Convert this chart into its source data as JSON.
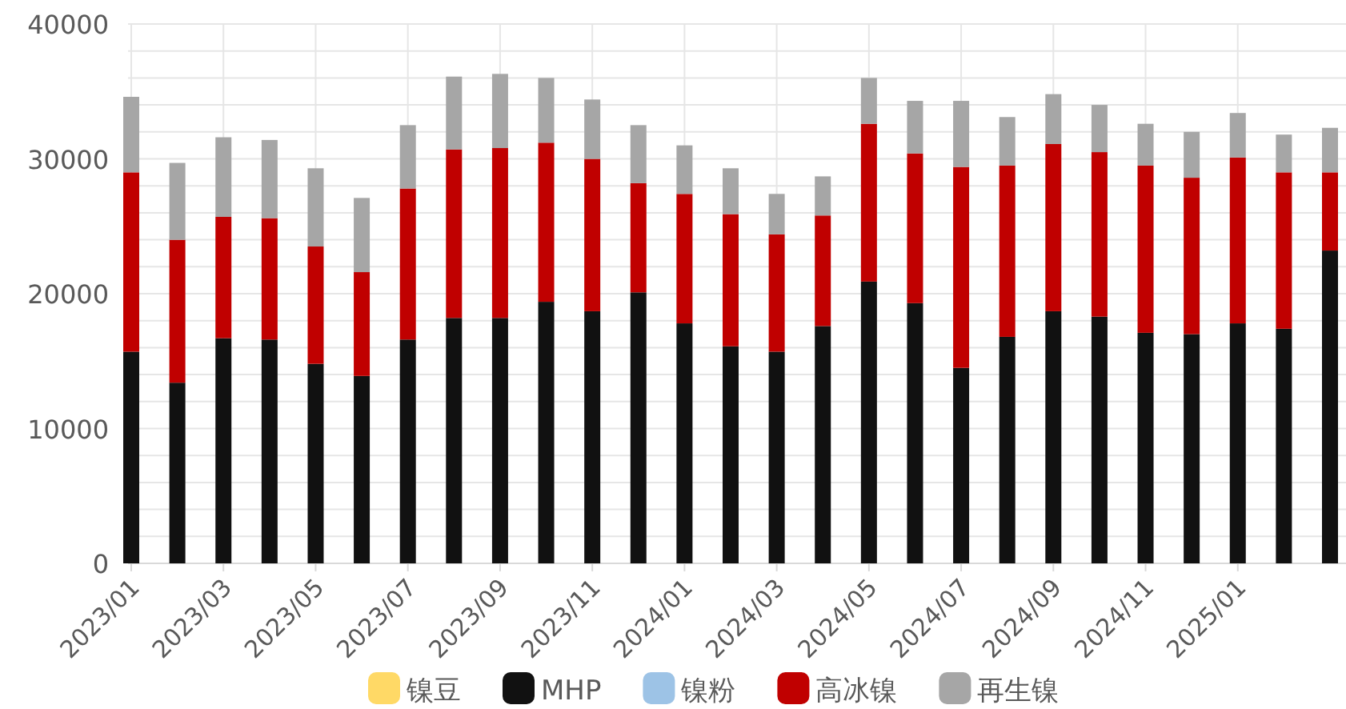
{
  "chart_data": {
    "type": "bar",
    "stacked": true,
    "grid": true,
    "legend": "bottom",
    "categories": [
      "2023/01",
      null,
      "2023/03",
      null,
      "2023/05",
      null,
      "2023/07",
      null,
      "2023/09",
      null,
      "2023/11",
      null,
      "2024/01",
      null,
      "2024/03",
      null,
      "2024/05",
      null,
      "2024/07",
      null,
      "2024/09",
      null,
      "2024/11",
      null,
      "2025/01",
      null,
      null
    ],
    "ylim": [
      0,
      40000
    ],
    "yticks": [
      0,
      {
        "value": 2000,
        "label": null
      },
      {
        "value": 4000,
        "label": null
      },
      {
        "value": 6000,
        "label": null
      },
      {
        "value": 8000,
        "label": null
      },
      10000,
      {
        "value": 12000,
        "label": null
      },
      {
        "value": 14000,
        "label": null
      },
      {
        "value": 16000,
        "label": null
      },
      {
        "value": 18000,
        "label": null
      },
      20000,
      {
        "value": 22000,
        "label": null
      },
      {
        "value": 24000,
        "label": null
      },
      {
        "value": 26000,
        "label": null
      },
      {
        "value": 28000,
        "label": null
      },
      30000,
      {
        "value": 32000,
        "label": null
      },
      {
        "value": 34000,
        "label": null
      },
      {
        "value": 36000,
        "label": null
      },
      {
        "value": 38000,
        "label": null
      },
      40000
    ],
    "series": [
      {
        "name": "镍豆",
        "color": "#ffd966",
        "values": [
          0,
          0,
          0,
          0,
          0,
          0,
          0,
          0,
          0,
          0,
          0,
          0,
          0,
          0,
          0,
          0,
          0,
          0,
          0,
          0,
          0,
          0,
          0,
          0,
          0,
          0,
          0
        ]
      },
      {
        "name": "MHP",
        "color": "#111111",
        "values": [
          15700,
          13400,
          16700,
          16600,
          14800,
          13900,
          16600,
          18200,
          18200,
          19400,
          18700,
          20100,
          17800,
          16100,
          15700,
          17600,
          20900,
          19300,
          14500,
          16800,
          18700,
          18300,
          17100,
          17000,
          17800,
          17400,
          23200
        ]
      },
      {
        "name": "镍粉",
        "color": "#9dc3e6",
        "values": [
          0,
          0,
          0,
          0,
          0,
          0,
          0,
          0,
          0,
          0,
          0,
          0,
          0,
          0,
          0,
          0,
          0,
          0,
          0,
          0,
          0,
          0,
          0,
          0,
          0,
          0,
          0
        ]
      },
      {
        "name": "高冰镍",
        "color": "#c00000",
        "values": [
          13300,
          10600,
          9000,
          9000,
          8700,
          7700,
          11200,
          12500,
          12600,
          11800,
          11300,
          8100,
          9600,
          9800,
          8700,
          8200,
          11700,
          11100,
          14900,
          12700,
          12400,
          12200,
          12400,
          11600,
          12300,
          11600,
          5800
        ]
      },
      {
        "name": "再生镍",
        "color": "#a6a6a6",
        "values": [
          5600,
          5700,
          5900,
          5800,
          5800,
          5500,
          4700,
          5400,
          5500,
          4800,
          4400,
          4300,
          3600,
          3400,
          3000,
          2900,
          3400,
          3900,
          4900,
          3600,
          3700,
          3500,
          3100,
          3400,
          3300,
          2800,
          3300
        ]
      }
    ]
  }
}
